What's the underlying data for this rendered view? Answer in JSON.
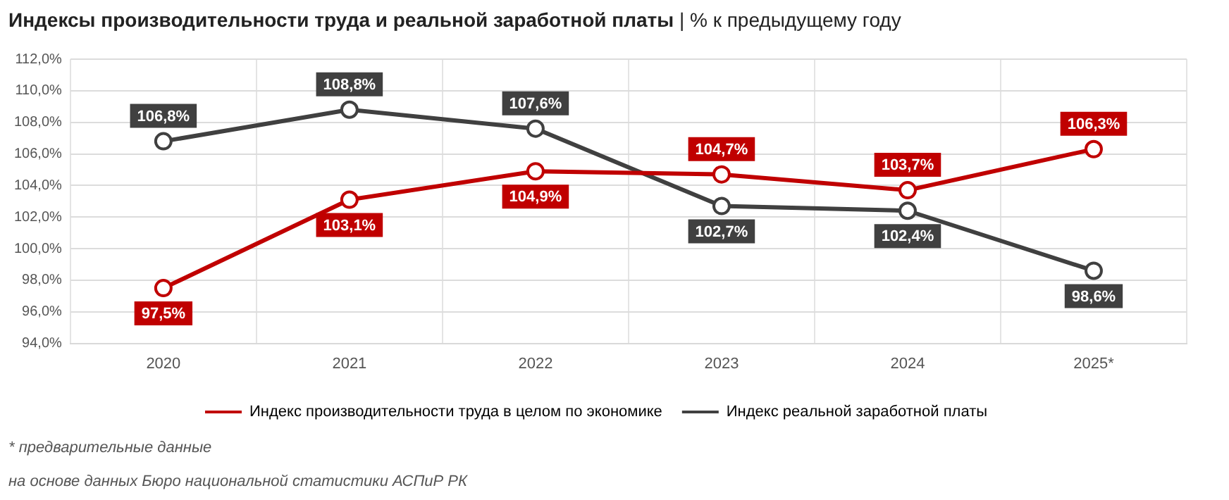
{
  "chart_data": {
    "type": "line",
    "title": "Индексы производительности труда и реальной заработной платы",
    "subtitle": "| % к предыдущему году",
    "categories": [
      "2020",
      "2021",
      "2022",
      "2023",
      "2024",
      "2025*"
    ],
    "series": [
      {
        "name": "Индекс производительности труда в целом по экономике",
        "color": "#c00000",
        "values": [
          97.5,
          103.1,
          104.9,
          104.7,
          103.7,
          106.3
        ],
        "value_labels": [
          "97,5%",
          "103,1%",
          "104,9%",
          "104,7%",
          "103,7%",
          "106,3%"
        ]
      },
      {
        "name": "Индекс реальной заработной платы",
        "color": "#404040",
        "values": [
          106.8,
          108.8,
          107.6,
          102.7,
          102.4,
          98.6
        ],
        "value_labels": [
          "106,8%",
          "108,8%",
          "107,6%",
          "102,7%",
          "102,4%",
          "98,6%"
        ]
      }
    ],
    "ylim": [
      94,
      112
    ],
    "yticks": [
      {
        "value": 94,
        "label": "94,0%"
      },
      {
        "value": 96,
        "label": "96,0%"
      },
      {
        "value": 98,
        "label": "98,0%"
      },
      {
        "value": 100,
        "label": "100,0%"
      },
      {
        "value": 102,
        "label": "102,0%"
      },
      {
        "value": 104,
        "label": "104,0%"
      },
      {
        "value": 106,
        "label": "106,0%"
      },
      {
        "value": 108,
        "label": "108,0%"
      },
      {
        "value": 110,
        "label": "110,0%"
      },
      {
        "value": 112,
        "label": "112,0%"
      }
    ],
    "grid": true,
    "legend": "bottom",
    "marker": "circle",
    "line_style": "solid",
    "annotations": [
      "* предварительные данные",
      "на основе данных Бюро национальной статистики АСПиР РК"
    ]
  }
}
